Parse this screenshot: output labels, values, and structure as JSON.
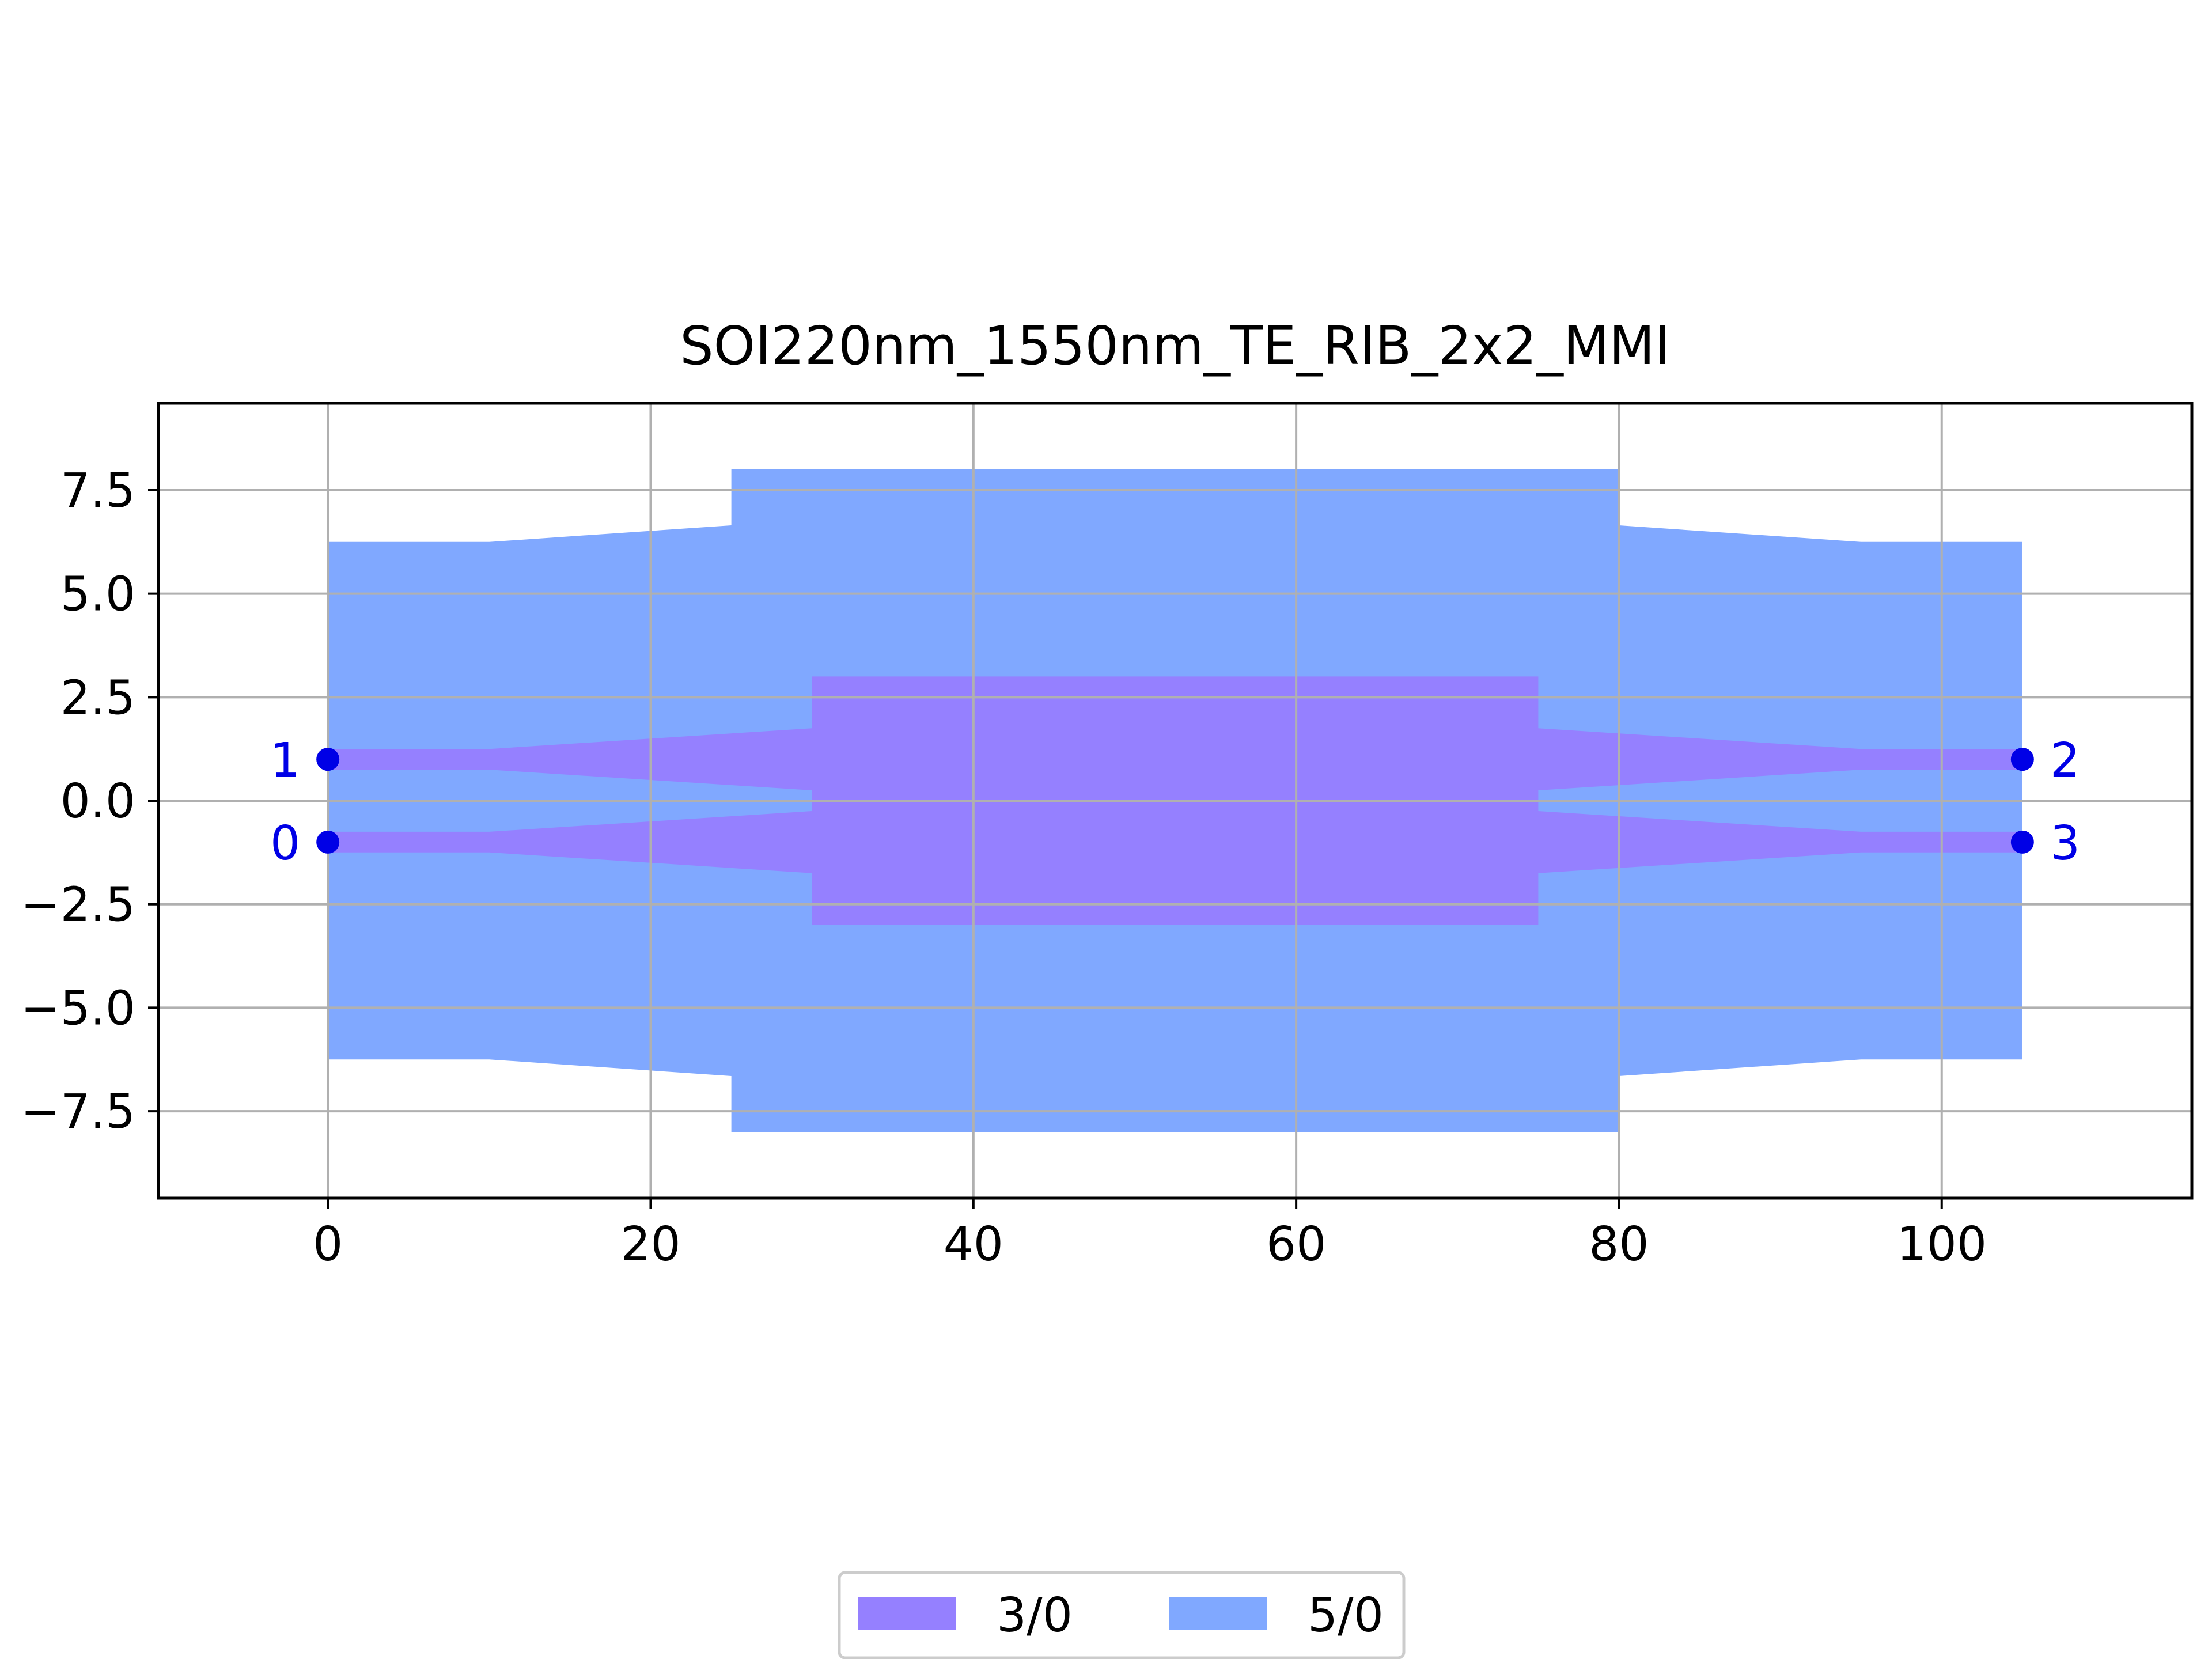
{
  "chart_data": {
    "type": "area",
    "title": "SOI220nm_1550nm_TE_RIB_2x2_MMI",
    "xlabel": "",
    "ylabel": "",
    "xlim": [
      -10.5,
      115.5
    ],
    "ylim": [
      -9.6,
      9.6
    ],
    "xticks": [
      0,
      20,
      40,
      60,
      80,
      100
    ],
    "xtick_labels": [
      "0",
      "20",
      "40",
      "60",
      "80",
      "100"
    ],
    "yticks": [
      7.5,
      5.0,
      2.5,
      0.0,
      -2.5,
      -5.0,
      -7.5
    ],
    "ytick_labels": [
      "7.5",
      "5.0",
      "2.5",
      "0.0",
      "−2.5",
      "−5.0",
      "−7.5"
    ],
    "grid": true,
    "legend_position": "bottom-center",
    "layers": [
      {
        "name": "5/0",
        "color": "#80a8ff",
        "polygons": [
          [
            [
              0,
              -6.25
            ],
            [
              0,
              6.25
            ],
            [
              10,
              6.25
            ],
            [
              25,
              6.65
            ],
            [
              25,
              8.0
            ],
            [
              80,
              8.0
            ],
            [
              80,
              6.65
            ],
            [
              95,
              6.25
            ],
            [
              105,
              6.25
            ],
            [
              105,
              -6.25
            ],
            [
              95,
              -6.25
            ],
            [
              80,
              -6.65
            ],
            [
              80,
              -8.0
            ],
            [
              25,
              -8.0
            ],
            [
              25,
              -6.65
            ],
            [
              10,
              -6.25
            ]
          ]
        ]
      },
      {
        "name": "3/0",
        "color": "#9580ff",
        "polygons": [
          [
            [
              0,
              1.25
            ],
            [
              10,
              1.25
            ],
            [
              30,
              1.75
            ],
            [
              30,
              3.0
            ],
            [
              75,
              3.0
            ],
            [
              75,
              1.75
            ],
            [
              95,
              1.25
            ],
            [
              105,
              1.25
            ],
            [
              105,
              0.75
            ],
            [
              95,
              0.75
            ],
            [
              75,
              0.25
            ],
            [
              75,
              -0.25
            ],
            [
              95,
              -0.75
            ],
            [
              105,
              -0.75
            ],
            [
              105,
              -1.25
            ],
            [
              95,
              -1.25
            ],
            [
              75,
              -1.75
            ],
            [
              75,
              -3.0
            ],
            [
              30,
              -3.0
            ],
            [
              30,
              -1.75
            ],
            [
              10,
              -1.25
            ],
            [
              0,
              -1.25
            ],
            [
              0,
              -0.75
            ],
            [
              10,
              -0.75
            ],
            [
              30,
              -0.25
            ],
            [
              30,
              0.25
            ],
            [
              10,
              0.75
            ],
            [
              0,
              0.75
            ]
          ]
        ]
      }
    ],
    "ports": [
      {
        "label": "1",
        "x": 0,
        "y": 1,
        "side": "left"
      },
      {
        "label": "0",
        "x": 0,
        "y": -1,
        "side": "left"
      },
      {
        "label": "2",
        "x": 105,
        "y": 1,
        "side": "right"
      },
      {
        "label": "3",
        "x": 105,
        "y": -1,
        "side": "right"
      }
    ],
    "port_color": "#0000e6",
    "legend": [
      {
        "label": "3/0",
        "color": "#9580ff"
      },
      {
        "label": "5/0",
        "color": "#80a8ff"
      }
    ]
  }
}
